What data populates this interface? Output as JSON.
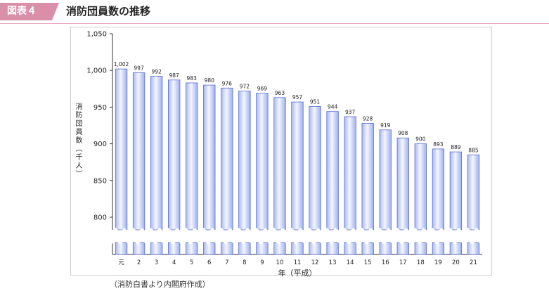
{
  "header": {
    "badge": "図表４",
    "title": "消防団員数の推移"
  },
  "colors": {
    "accent": "#d98fa7",
    "bar_fill": "#dfe6fb",
    "bar_edge": "#5b6fd6",
    "axis": "#333333"
  },
  "source_note": "（消防白書より内閣府作成）",
  "chart_data": {
    "type": "bar",
    "title": "消防団員数の推移",
    "xlabel": "年（平成）",
    "ylabel": "消防団員数（千人）",
    "categories": [
      "元",
      "2",
      "3",
      "4",
      "5",
      "6",
      "7",
      "8",
      "9",
      "10",
      "11",
      "12",
      "13",
      "14",
      "15",
      "16",
      "17",
      "18",
      "19",
      "20",
      "21"
    ],
    "values": [
      1002,
      997,
      992,
      987,
      983,
      980,
      976,
      972,
      969,
      963,
      957,
      951,
      944,
      937,
      928,
      919,
      908,
      900,
      893,
      889,
      885
    ],
    "value_labels": [
      "1,002",
      "997",
      "992",
      "987",
      "983",
      "980",
      "976",
      "972",
      "969",
      "963",
      "957",
      "951",
      "944",
      "937",
      "928",
      "919",
      "908",
      "900",
      "893",
      "889",
      "885"
    ],
    "yticks": [
      800,
      850,
      900,
      950,
      1000,
      1050
    ],
    "ytick_labels": [
      "800",
      "850",
      "900",
      "950",
      "1,000",
      "1,050"
    ],
    "ylim": [
      800,
      1050
    ],
    "axis_break": true,
    "grid": false,
    "legend": "none"
  }
}
